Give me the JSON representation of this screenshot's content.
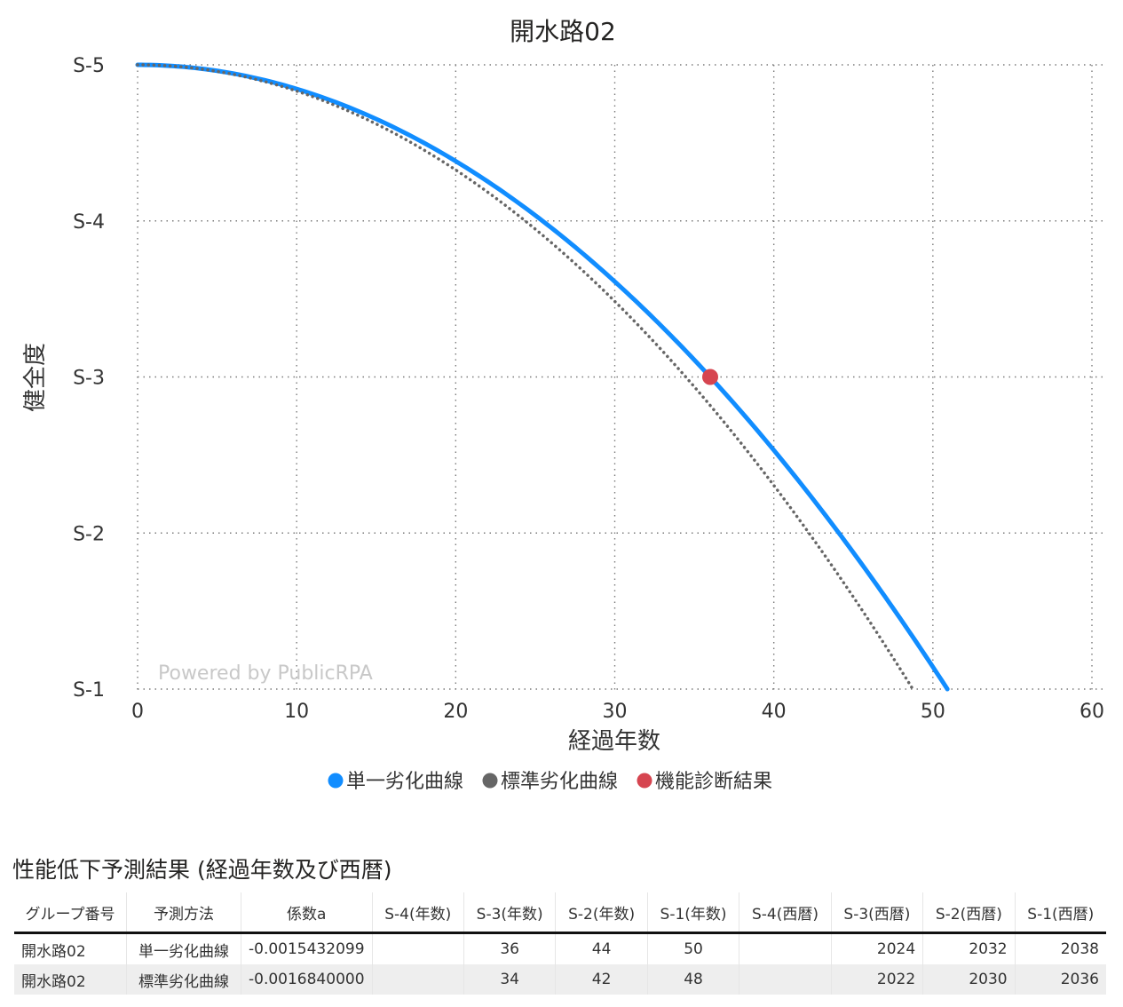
{
  "chart_data": {
    "type": "line",
    "title": "開水路02",
    "xlabel": "経過年数",
    "ylabel": "健全度",
    "xlim": [
      0,
      60
    ],
    "ylim": [
      1,
      5
    ],
    "x_ticks": [
      0,
      10,
      20,
      30,
      40,
      50,
      60
    ],
    "y_ticks": [
      {
        "value": 5,
        "label": "S-5"
      },
      {
        "value": 4,
        "label": "S-4"
      },
      {
        "value": 3,
        "label": "S-3"
      },
      {
        "value": 2,
        "label": "S-2"
      },
      {
        "value": 1,
        "label": "S-1"
      }
    ],
    "grid": true,
    "legend_position": "bottom",
    "series": [
      {
        "name": "単一劣化曲線",
        "style": "solid",
        "color": "#118DFF",
        "coef_a": -0.0015432099,
        "intercept": 5,
        "x": [
          0,
          10,
          20,
          30,
          36,
          40,
          45,
          50.9
        ],
        "y": [
          5.0,
          4.846,
          4.383,
          3.611,
          3.0,
          2.531,
          1.875,
          1.0
        ]
      },
      {
        "name": "標準劣化曲線",
        "style": "dotted",
        "color": "#666666",
        "coef_a": -0.001684,
        "intercept": 5,
        "x": [
          0,
          10,
          20,
          30,
          34,
          40,
          45,
          48.7
        ],
        "y": [
          5.0,
          4.832,
          4.326,
          3.484,
          3.053,
          2.306,
          1.59,
          1.0
        ]
      },
      {
        "name": "機能診断結果",
        "style": "point",
        "color": "#D64550",
        "x": [
          36
        ],
        "y": [
          3.0
        ]
      }
    ],
    "watermark": "Powered by PublicRPA"
  },
  "table": {
    "title": "性能低下予測結果 (経過年数及び西暦)",
    "headers": [
      "グループ番号",
      "予測方法",
      "係数a",
      "S-4(年数)",
      "S-3(年数)",
      "S-2(年数)",
      "S-1(年数)",
      "S-4(西暦)",
      "S-3(西暦)",
      "S-2(西暦)",
      "S-1(西暦)"
    ],
    "rows": [
      [
        "開水路02",
        "単一劣化曲線",
        "-0.0015432099",
        "",
        "36",
        "44",
        "50",
        "",
        "2024",
        "2032",
        "2038"
      ],
      [
        "開水路02",
        "標準劣化曲線",
        "-0.0016840000",
        "",
        "34",
        "42",
        "48",
        "",
        "2022",
        "2030",
        "2036"
      ]
    ]
  }
}
